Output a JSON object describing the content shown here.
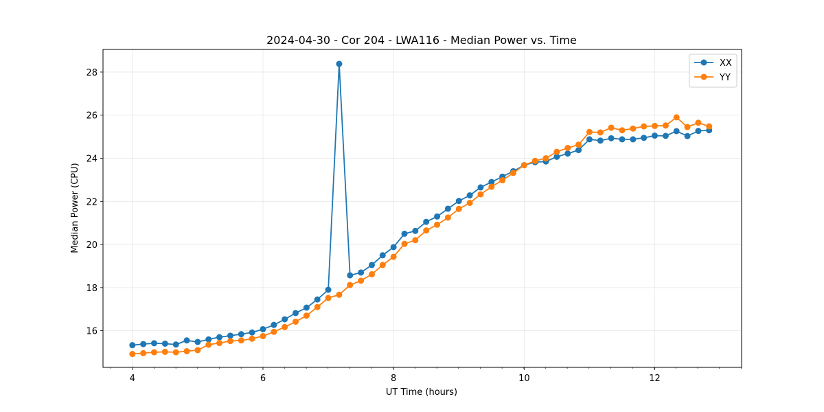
{
  "chart_data": {
    "type": "line",
    "title": "2024-04-30 - Cor 204 - LWA116 - Median Power vs. Time",
    "xlabel": "UT Time (hours)",
    "ylabel": "Median Power (CPU)",
    "xlim": [
      3.55,
      13.33
    ],
    "ylim": [
      14.3,
      29.05
    ],
    "x_ticks": [
      4,
      6,
      8,
      10,
      12
    ],
    "x_tick_labels": [
      "4",
      "6",
      "8",
      "10",
      "12"
    ],
    "x_minor_step": 0.333,
    "y_ticks": [
      16,
      18,
      20,
      22,
      24,
      26,
      28
    ],
    "y_tick_labels": [
      "16",
      "18",
      "20",
      "22",
      "24",
      "26",
      "28"
    ],
    "grid": true,
    "legend": "top-right",
    "x": [
      4.0,
      4.167,
      4.333,
      4.5,
      4.667,
      4.833,
      5.0,
      5.167,
      5.333,
      5.5,
      5.667,
      5.833,
      6.0,
      6.167,
      6.333,
      6.5,
      6.667,
      6.833,
      7.0,
      7.167,
      7.333,
      7.5,
      7.667,
      7.833,
      8.0,
      8.167,
      8.333,
      8.5,
      8.667,
      8.833,
      9.0,
      9.167,
      9.333,
      9.5,
      9.667,
      9.833,
      10.0,
      10.167,
      10.333,
      10.5,
      10.667,
      10.833,
      11.0,
      11.167,
      11.333,
      11.5,
      11.667,
      11.833,
      12.0,
      12.167,
      12.333,
      12.5,
      12.667,
      12.833
    ],
    "series": [
      {
        "name": "XX",
        "color": "#1f77b4",
        "values": [
          15.33,
          15.38,
          15.42,
          15.4,
          15.36,
          15.55,
          15.48,
          15.6,
          15.7,
          15.77,
          15.84,
          15.92,
          16.07,
          16.27,
          16.53,
          16.82,
          17.07,
          17.45,
          17.9,
          28.38,
          18.57,
          18.7,
          19.05,
          19.5,
          19.88,
          20.5,
          20.63,
          21.05,
          21.3,
          21.66,
          22.02,
          22.28,
          22.65,
          22.9,
          23.15,
          23.4,
          23.68,
          23.82,
          23.85,
          24.07,
          24.22,
          24.38,
          24.88,
          24.82,
          24.93,
          24.88,
          24.88,
          24.95,
          25.05,
          25.04,
          25.26,
          25.03,
          25.27,
          25.3
        ]
      },
      {
        "name": "YY",
        "color": "#ff7f0e",
        "values": [
          14.92,
          14.96,
          15.0,
          15.02,
          15.0,
          15.05,
          15.1,
          15.35,
          15.43,
          15.52,
          15.55,
          15.63,
          15.75,
          15.95,
          16.17,
          16.42,
          16.7,
          17.1,
          17.52,
          17.67,
          18.12,
          18.32,
          18.62,
          19.05,
          19.43,
          20.03,
          20.2,
          20.65,
          20.92,
          21.25,
          21.65,
          21.93,
          22.33,
          22.68,
          22.98,
          23.32,
          23.68,
          23.88,
          24.0,
          24.3,
          24.48,
          24.63,
          25.22,
          25.2,
          25.42,
          25.3,
          25.38,
          25.48,
          25.5,
          25.52,
          25.9,
          25.45,
          25.65,
          25.48
        ]
      }
    ]
  }
}
